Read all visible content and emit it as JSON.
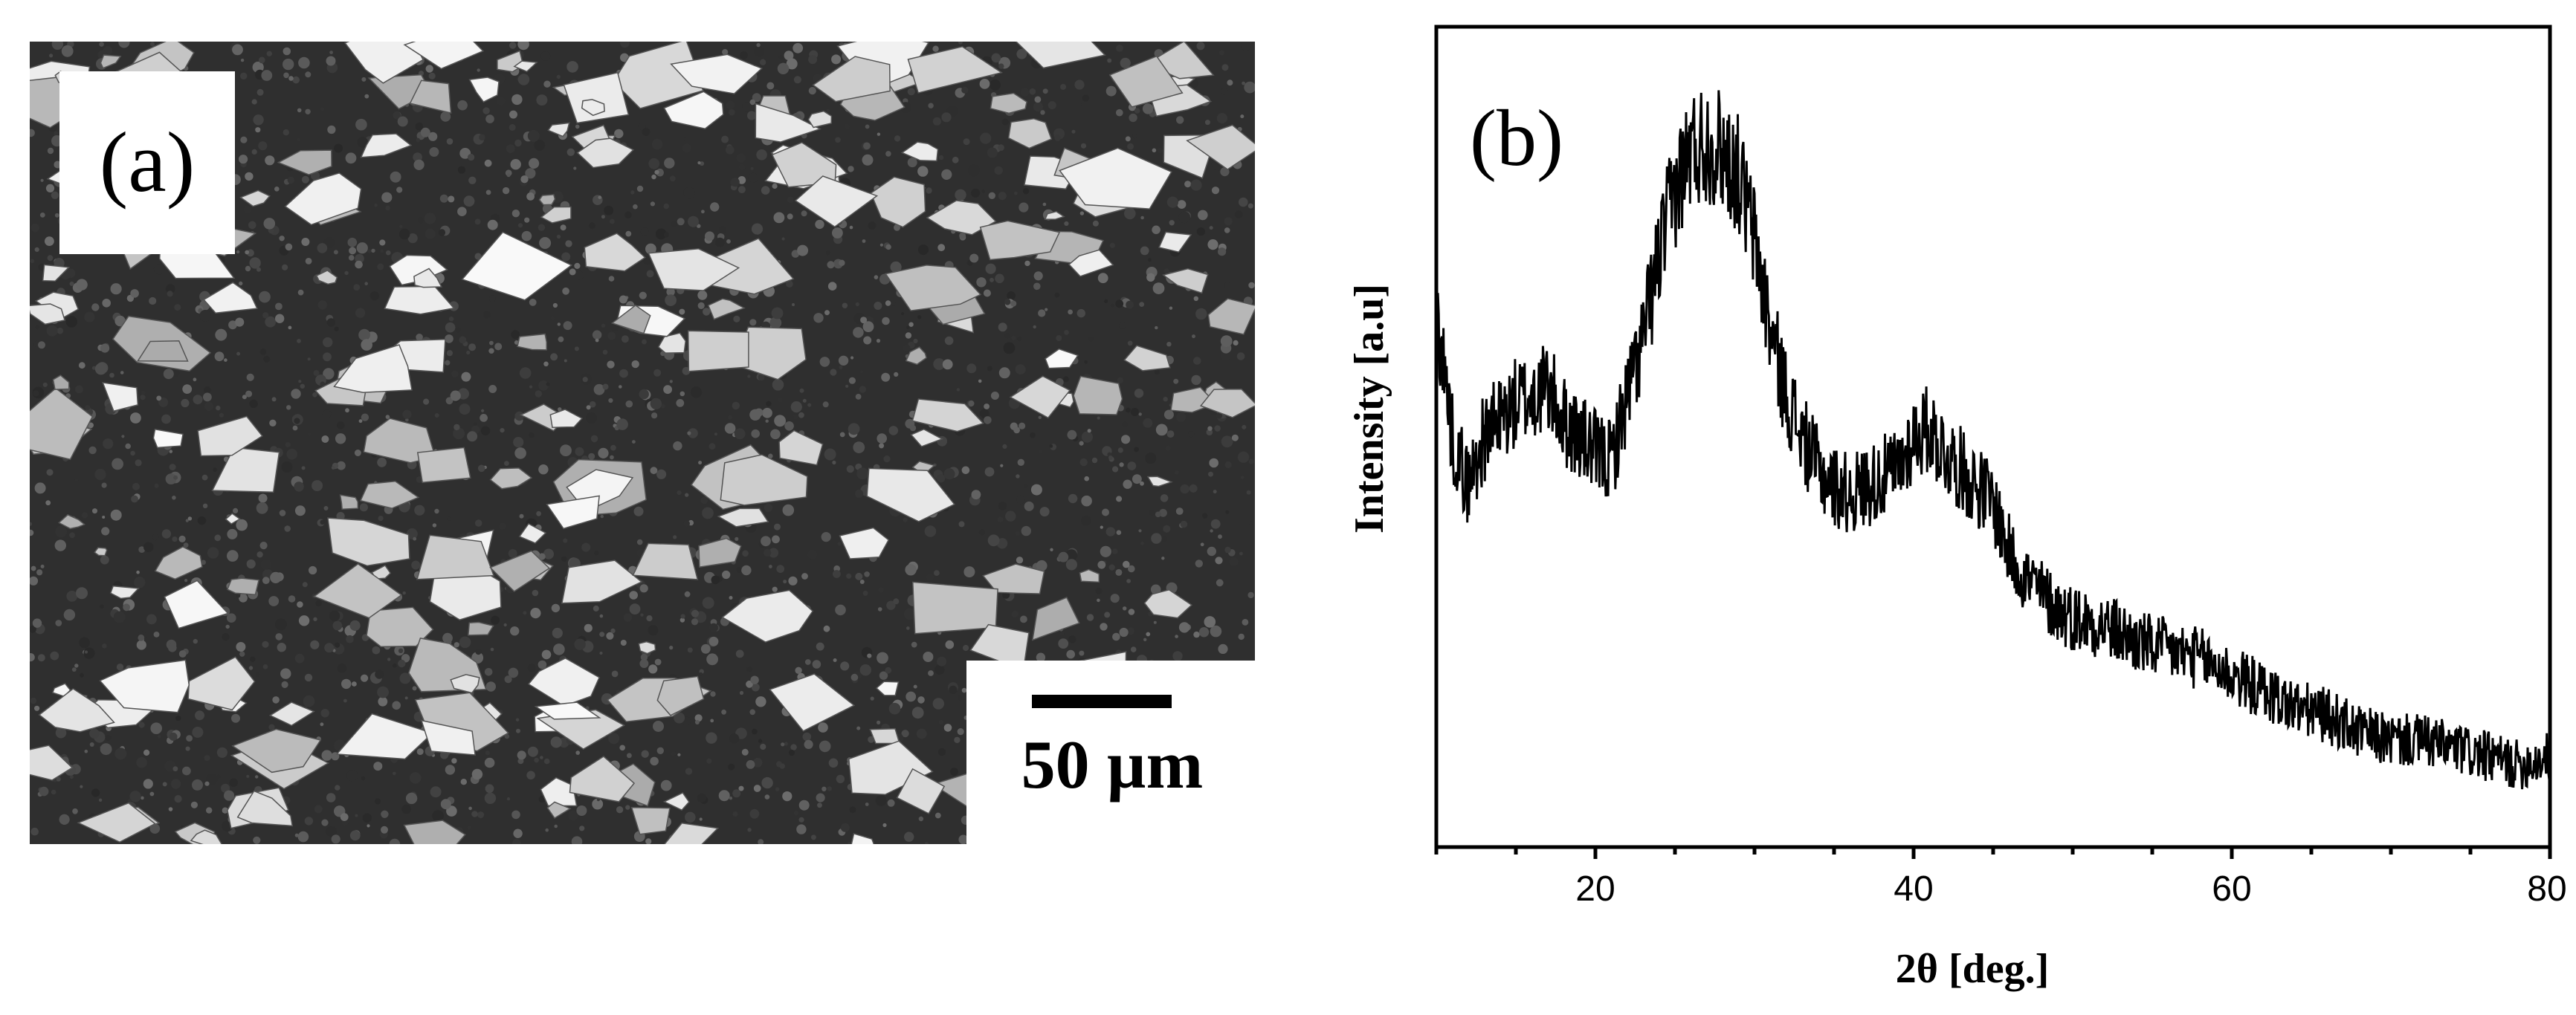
{
  "panel_a": {
    "label": "(a)",
    "scale_bar": {
      "text": "50 µm"
    }
  },
  "chart_data": {
    "type": "line",
    "panel_label": "(b)",
    "title": "",
    "xlabel": "2θ [deg.]",
    "ylabel": "Intensity [a.u]",
    "xlim": [
      10,
      80
    ],
    "ylim": [
      0,
      100
    ],
    "x_ticks": [
      20,
      40,
      60,
      80
    ],
    "y_ticks_shown": false,
    "grid": false,
    "legend": "none",
    "series": [
      {
        "x": [
          10,
          11,
          12,
          13,
          14,
          15,
          16,
          17,
          18,
          19,
          20,
          21,
          22,
          23,
          24,
          25,
          26,
          27,
          28,
          29,
          30,
          31,
          32,
          33,
          34,
          35,
          36,
          37,
          38,
          39,
          40,
          41,
          42,
          43,
          44,
          45,
          46,
          47,
          48,
          49,
          50,
          52,
          54,
          56,
          58,
          60,
          62,
          64,
          66,
          68,
          70,
          72,
          74,
          76,
          78,
          80
        ],
        "y": [
          66,
          50,
          44,
          50,
          52,
          54,
          55,
          56,
          52,
          50,
          48,
          47,
          55,
          62,
          72,
          80,
          85,
          86,
          85,
          82,
          74,
          63,
          55,
          50,
          46,
          44,
          43,
          44,
          45,
          46,
          50,
          51,
          48,
          46,
          44,
          42,
          36,
          33,
          31,
          29,
          28,
          27,
          25,
          24,
          23,
          21,
          19,
          17,
          16,
          14,
          13,
          13,
          12,
          11,
          10,
          11
        ]
      }
    ]
  }
}
